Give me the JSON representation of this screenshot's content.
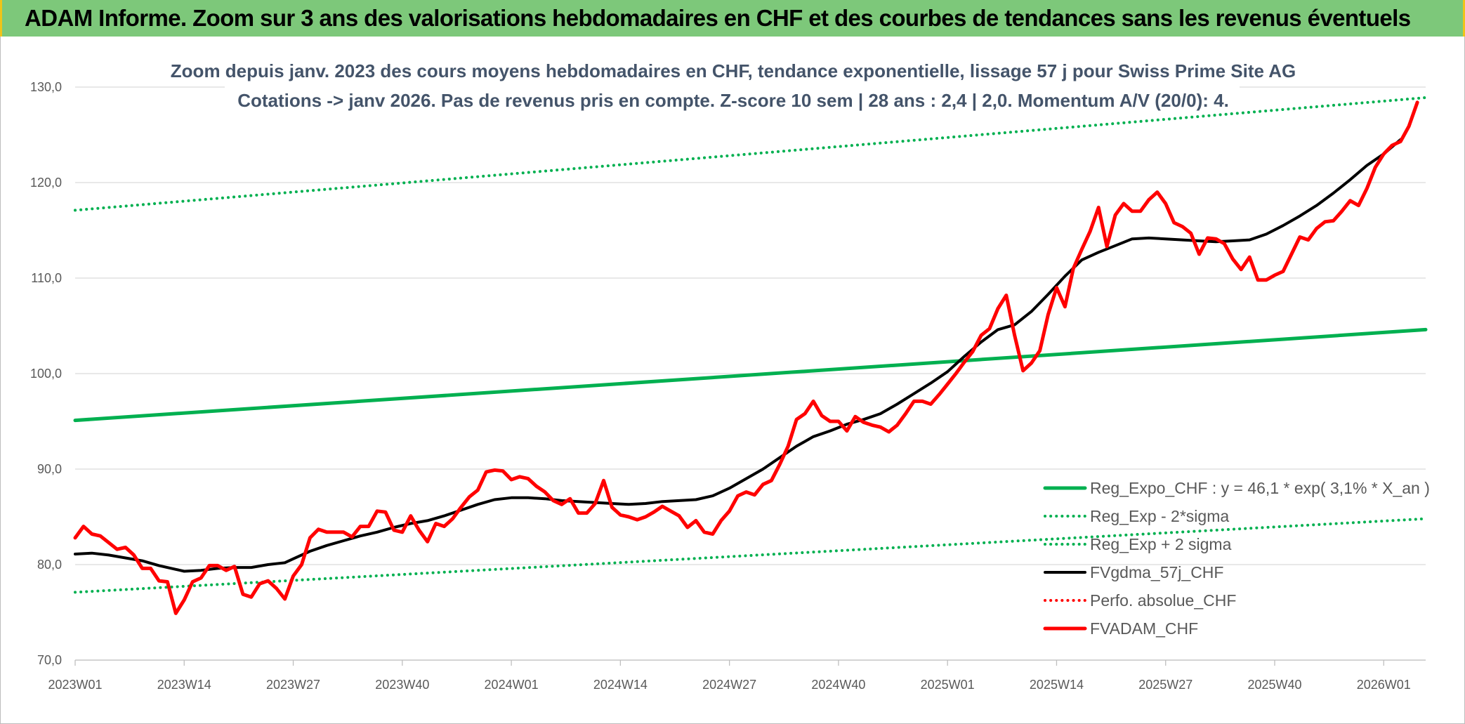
{
  "header": {
    "title": "ADAM Informe. Zoom sur 3 ans des valorisations hebdomadaires en CHF et des courbes de tendances sans les revenus éventuels"
  },
  "colors": {
    "banner": "#7dc87a",
    "trend": "#00b050",
    "sigma": "#00b050",
    "smooth": "#000000",
    "perfo": "#ff0000",
    "adam": "#ff0000"
  },
  "chart_data": {
    "type": "line",
    "subtitle_line1": "Zoom depuis janv. 2023 des cours moyens hebdomadaires en CHF, tendance exponentielle, lissage 57 j pour Swiss Prime Site AG",
    "subtitle_line2": "Cotations -> janv 2026. Pas de revenus pris en compte. Z-score 10 sem | 28 ans : 2,4 | 2,0. Momentum A/V (20/0): 4.",
    "xlabel": "",
    "ylabel": "",
    "ylim": [
      70,
      130
    ],
    "yticks": [
      "70,0",
      "80,0",
      "90,0",
      "100,0",
      "110,0",
      "120,0",
      "130,0"
    ],
    "x_range_weeks": [
      0,
      161
    ],
    "x_tick_labels": [
      "2023W01",
      "2023W14",
      "2023W27",
      "2023W40",
      "2024W01",
      "2024W14",
      "2024W27",
      "2024W40",
      "2025W01",
      "2025W14",
      "2025W27",
      "2025W40",
      "2026W01"
    ],
    "x_tick_weeks": [
      0,
      13,
      26,
      39,
      52,
      65,
      78,
      91,
      104,
      117,
      130,
      143,
      156
    ],
    "grid": true,
    "legend_position": "bottom-right",
    "series": [
      {
        "name": "Reg_Expo_CHF : y = 46,1 * exp( 3,1% *  X_an )",
        "style": "thick-solid",
        "color": "#00b050",
        "points": [
          [
            0,
            95.1
          ],
          [
            161,
            104.6
          ]
        ]
      },
      {
        "name": "Reg_Exp - 2*sigma",
        "style": "dotted",
        "color": "#00b050",
        "points": [
          [
            0,
            77.1
          ],
          [
            161,
            84.8
          ]
        ]
      },
      {
        "name": "Reg_Exp + 2 sigma",
        "style": "dotted",
        "color": "#00b050",
        "points": [
          [
            0,
            117.1
          ],
          [
            161,
            128.9
          ]
        ]
      },
      {
        "name": "FVgdma_57j_CHF",
        "style": "solid",
        "color": "#000000",
        "points": [
          [
            0,
            81.1
          ],
          [
            2,
            81.2
          ],
          [
            4,
            81.0
          ],
          [
            6,
            80.7
          ],
          [
            8,
            80.4
          ],
          [
            10,
            79.9
          ],
          [
            12,
            79.5
          ],
          [
            13,
            79.3
          ],
          [
            15,
            79.4
          ],
          [
            17,
            79.6
          ],
          [
            19,
            79.7
          ],
          [
            21,
            79.7
          ],
          [
            23,
            80.0
          ],
          [
            25,
            80.2
          ],
          [
            26,
            80.6
          ],
          [
            28,
            81.4
          ],
          [
            30,
            82.0
          ],
          [
            32,
            82.5
          ],
          [
            34,
            83.0
          ],
          [
            36,
            83.4
          ],
          [
            38,
            83.9
          ],
          [
            40,
            84.3
          ],
          [
            42,
            84.6
          ],
          [
            44,
            85.1
          ],
          [
            46,
            85.7
          ],
          [
            48,
            86.3
          ],
          [
            50,
            86.8
          ],
          [
            52,
            87.0
          ],
          [
            54,
            87.0
          ],
          [
            56,
            86.9
          ],
          [
            58,
            86.7
          ],
          [
            60,
            86.6
          ],
          [
            62,
            86.5
          ],
          [
            64,
            86.4
          ],
          [
            66,
            86.3
          ],
          [
            68,
            86.4
          ],
          [
            70,
            86.6
          ],
          [
            72,
            86.7
          ],
          [
            74,
            86.8
          ],
          [
            76,
            87.2
          ],
          [
            78,
            88.0
          ],
          [
            80,
            89.0
          ],
          [
            82,
            90.0
          ],
          [
            84,
            91.2
          ],
          [
            86,
            92.4
          ],
          [
            88,
            93.4
          ],
          [
            90,
            94.0
          ],
          [
            92,
            94.7
          ],
          [
            94,
            95.2
          ],
          [
            96,
            95.8
          ],
          [
            98,
            96.8
          ],
          [
            100,
            97.9
          ],
          [
            102,
            99.0
          ],
          [
            104,
            100.2
          ],
          [
            106,
            101.8
          ],
          [
            108,
            103.3
          ],
          [
            110,
            104.6
          ],
          [
            112,
            105.1
          ],
          [
            114,
            106.5
          ],
          [
            116,
            108.3
          ],
          [
            118,
            110.2
          ],
          [
            120,
            111.9
          ],
          [
            122,
            112.7
          ],
          [
            124,
            113.4
          ],
          [
            126,
            114.1
          ],
          [
            128,
            114.2
          ],
          [
            130,
            114.1
          ],
          [
            132,
            114.0
          ],
          [
            134,
            113.9
          ],
          [
            136,
            113.8
          ],
          [
            138,
            113.9
          ],
          [
            140,
            114.0
          ],
          [
            142,
            114.6
          ],
          [
            144,
            115.5
          ],
          [
            146,
            116.5
          ],
          [
            148,
            117.6
          ],
          [
            150,
            118.9
          ],
          [
            152,
            120.3
          ],
          [
            154,
            121.8
          ],
          [
            156,
            123.0
          ],
          [
            158,
            124.5
          ]
        ]
      },
      {
        "name": "Perfo. absolue_CHF",
        "style": "dotted",
        "color": "#ff0000",
        "points": []
      },
      {
        "name": "FVADAM_CHF",
        "style": "thick-solid",
        "color": "#ff0000",
        "points": [
          [
            0,
            82.8
          ],
          [
            1,
            84.0
          ],
          [
            2,
            83.2
          ],
          [
            3,
            83.0
          ],
          [
            4,
            82.3
          ],
          [
            5,
            81.6
          ],
          [
            6,
            81.8
          ],
          [
            7,
            81.0
          ],
          [
            8,
            79.6
          ],
          [
            9,
            79.6
          ],
          [
            10,
            78.3
          ],
          [
            11,
            78.2
          ],
          [
            12,
            74.9
          ],
          [
            13,
            76.3
          ],
          [
            14,
            78.2
          ],
          [
            15,
            78.6
          ],
          [
            16,
            79.9
          ],
          [
            17,
            79.9
          ],
          [
            18,
            79.4
          ],
          [
            19,
            79.8
          ],
          [
            20,
            76.9
          ],
          [
            21,
            76.6
          ],
          [
            22,
            78.0
          ],
          [
            23,
            78.3
          ],
          [
            24,
            77.5
          ],
          [
            25,
            76.4
          ],
          [
            26,
            78.8
          ],
          [
            27,
            80.0
          ],
          [
            28,
            82.8
          ],
          [
            29,
            83.7
          ],
          [
            30,
            83.4
          ],
          [
            31,
            83.4
          ],
          [
            32,
            83.4
          ],
          [
            33,
            82.9
          ],
          [
            34,
            84.0
          ],
          [
            35,
            84.0
          ],
          [
            36,
            85.6
          ],
          [
            37,
            85.5
          ],
          [
            38,
            83.6
          ],
          [
            39,
            83.4
          ],
          [
            40,
            85.1
          ],
          [
            41,
            83.6
          ],
          [
            42,
            82.4
          ],
          [
            43,
            84.3
          ],
          [
            44,
            84.0
          ],
          [
            45,
            84.8
          ],
          [
            46,
            86.0
          ],
          [
            47,
            87.1
          ],
          [
            48,
            87.8
          ],
          [
            49,
            89.7
          ],
          [
            50,
            89.9
          ],
          [
            51,
            89.8
          ],
          [
            52,
            88.9
          ],
          [
            53,
            89.2
          ],
          [
            54,
            89.0
          ],
          [
            55,
            88.2
          ],
          [
            56,
            87.6
          ],
          [
            57,
            86.7
          ],
          [
            58,
            86.3
          ],
          [
            59,
            86.9
          ],
          [
            60,
            85.4
          ],
          [
            61,
            85.4
          ],
          [
            62,
            86.4
          ],
          [
            63,
            88.8
          ],
          [
            64,
            86.0
          ],
          [
            65,
            85.2
          ],
          [
            66,
            85.0
          ],
          [
            67,
            84.7
          ],
          [
            68,
            85.0
          ],
          [
            69,
            85.5
          ],
          [
            70,
            86.1
          ],
          [
            71,
            85.6
          ],
          [
            72,
            85.1
          ],
          [
            73,
            83.9
          ],
          [
            74,
            84.6
          ],
          [
            75,
            83.4
          ],
          [
            76,
            83.2
          ],
          [
            77,
            84.6
          ],
          [
            78,
            85.6
          ],
          [
            79,
            87.2
          ],
          [
            80,
            87.6
          ],
          [
            81,
            87.3
          ],
          [
            82,
            88.4
          ],
          [
            83,
            88.8
          ],
          [
            84,
            90.5
          ],
          [
            85,
            92.4
          ],
          [
            86,
            95.2
          ],
          [
            87,
            95.8
          ],
          [
            88,
            97.1
          ],
          [
            89,
            95.6
          ],
          [
            90,
            95.0
          ],
          [
            91,
            95.0
          ],
          [
            92,
            94.0
          ],
          [
            93,
            95.5
          ],
          [
            94,
            94.9
          ],
          [
            95,
            94.6
          ],
          [
            96,
            94.4
          ],
          [
            97,
            93.9
          ],
          [
            98,
            94.6
          ],
          [
            99,
            95.8
          ],
          [
            100,
            97.1
          ],
          [
            101,
            97.1
          ],
          [
            102,
            96.8
          ],
          [
            103,
            97.8
          ],
          [
            104,
            98.9
          ],
          [
            105,
            100.0
          ],
          [
            106,
            101.2
          ],
          [
            107,
            102.3
          ],
          [
            108,
            104.0
          ],
          [
            109,
            104.7
          ],
          [
            110,
            106.8
          ],
          [
            111,
            108.2
          ],
          [
            112,
            104.0
          ],
          [
            113,
            100.3
          ],
          [
            114,
            101.1
          ],
          [
            115,
            102.4
          ],
          [
            116,
            106.2
          ],
          [
            117,
            109.0
          ],
          [
            118,
            107.0
          ],
          [
            119,
            111.0
          ],
          [
            120,
            113.0
          ],
          [
            121,
            114.9
          ],
          [
            122,
            117.4
          ],
          [
            123,
            113.3
          ],
          [
            124,
            116.6
          ],
          [
            125,
            117.8
          ],
          [
            126,
            117.0
          ],
          [
            127,
            117.0
          ],
          [
            128,
            118.2
          ],
          [
            129,
            119.0
          ],
          [
            130,
            117.8
          ],
          [
            131,
            115.8
          ],
          [
            132,
            115.4
          ],
          [
            133,
            114.7
          ],
          [
            134,
            112.5
          ],
          [
            135,
            114.2
          ],
          [
            136,
            114.1
          ],
          [
            137,
            113.6
          ],
          [
            138,
            112.0
          ],
          [
            139,
            110.9
          ],
          [
            140,
            112.2
          ],
          [
            141,
            109.8
          ],
          [
            142,
            109.8
          ],
          [
            143,
            110.3
          ],
          [
            144,
            110.7
          ],
          [
            145,
            112.5
          ],
          [
            146,
            114.3
          ],
          [
            147,
            114.0
          ],
          [
            148,
            115.2
          ],
          [
            149,
            115.9
          ],
          [
            150,
            116.0
          ],
          [
            151,
            117.0
          ],
          [
            152,
            118.1
          ],
          [
            153,
            117.6
          ],
          [
            154,
            119.4
          ],
          [
            155,
            121.6
          ],
          [
            156,
            123.0
          ],
          [
            157,
            123.9
          ],
          [
            158,
            124.3
          ],
          [
            159,
            125.9
          ],
          [
            160,
            128.4
          ]
        ]
      }
    ]
  }
}
